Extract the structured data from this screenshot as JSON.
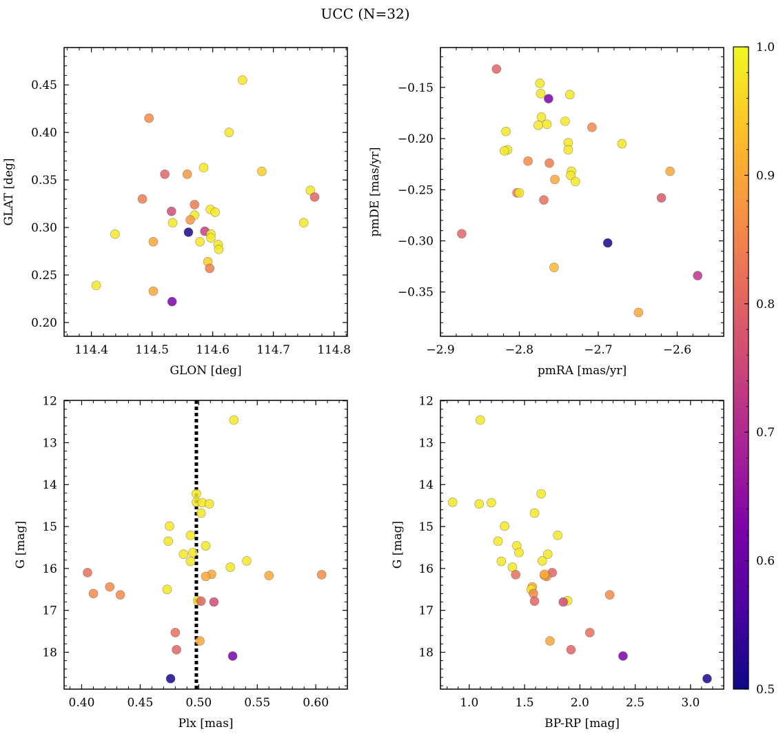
{
  "chart_data": [
    {
      "type": "scatter",
      "title": "UCC (N=32)",
      "xlabel": "GLON [deg]",
      "ylabel": "GLAT [deg]",
      "xlim": [
        114.355,
        114.822
      ],
      "ylim": [
        0.1855,
        0.4893
      ],
      "xticks": [
        114.4,
        114.5,
        114.6,
        114.7,
        114.8
      ],
      "xtick_labels": [
        "114.4",
        "114.5",
        "114.6",
        "114.7",
        "114.8"
      ],
      "yticks": [
        0.2,
        0.25,
        0.3,
        0.35,
        0.4,
        0.45
      ],
      "ytick_labels": [
        "0.20",
        "0.25",
        "0.30",
        "0.35",
        "0.40",
        "0.45"
      ],
      "x": [
        114.649,
        114.495,
        114.627,
        114.585,
        114.681,
        114.521,
        114.558,
        114.761,
        114.484,
        114.768,
        114.532,
        114.57,
        114.596,
        114.604,
        114.534,
        114.57,
        114.563,
        114.75,
        114.587,
        114.597,
        114.56,
        114.439,
        114.597,
        114.502,
        114.579,
        114.609,
        114.61,
        114.592,
        114.595,
        114.408,
        114.502,
        114.533
      ],
      "y": [
        0.455,
        0.415,
        0.4,
        0.363,
        0.359,
        0.356,
        0.356,
        0.339,
        0.33,
        0.332,
        0.317,
        0.324,
        0.319,
        0.316,
        0.305,
        0.313,
        0.308,
        0.305,
        0.296,
        0.293,
        0.295,
        0.293,
        0.289,
        0.285,
        0.285,
        0.282,
        0.277,
        0.264,
        0.257,
        0.239,
        0.233,
        0.222
      ],
      "c": [
        0.98,
        0.86,
        0.98,
        0.98,
        0.95,
        0.8,
        0.88,
        0.98,
        0.84,
        0.8,
        0.76,
        0.84,
        0.98,
        0.98,
        0.98,
        0.98,
        0.88,
        0.98,
        0.74,
        0.98,
        0.51,
        0.98,
        0.98,
        0.9,
        0.98,
        0.98,
        0.98,
        0.95,
        0.84,
        0.98,
        0.9,
        0.62
      ]
    },
    {
      "type": "scatter",
      "xlabel": "pmRA [mas/yr]",
      "ylabel": "pmDE [mas/yr]",
      "xlim": [
        -2.9,
        -2.541
      ],
      "ylim": [
        -0.3933,
        -0.111
      ],
      "xticks": [
        -2.9,
        -2.8,
        -2.7,
        -2.6
      ],
      "xtick_labels": [
        "−2.9",
        "−2.8",
        "−2.7",
        "−2.6"
      ],
      "yticks": [
        -0.35,
        -0.3,
        -0.25,
        -0.2,
        -0.15
      ],
      "ytick_labels": [
        "−0.35",
        "−0.30",
        "−0.25",
        "−0.20",
        "−0.15"
      ],
      "x": [
        -2.829,
        -2.774,
        -2.773,
        -2.763,
        -2.736,
        -2.772,
        -2.776,
        -2.765,
        -2.742,
        -2.708,
        -2.817,
        -2.738,
        -2.815,
        -2.819,
        -2.67,
        -2.738,
        -2.789,
        -2.762,
        -2.734,
        -2.735,
        -2.609,
        -2.803,
        -2.8,
        -2.755,
        -2.729,
        -2.769,
        -2.62,
        -2.873,
        -2.688,
        -2.756,
        -2.574,
        -2.649
      ],
      "y": [
        -0.132,
        -0.146,
        -0.156,
        -0.161,
        -0.157,
        -0.179,
        -0.187,
        -0.186,
        -0.183,
        -0.189,
        -0.193,
        -0.204,
        -0.211,
        -0.212,
        -0.205,
        -0.211,
        -0.222,
        -0.224,
        -0.232,
        -0.236,
        -0.232,
        -0.253,
        -0.253,
        -0.24,
        -0.242,
        -0.26,
        -0.258,
        -0.293,
        -0.302,
        -0.326,
        -0.334,
        -0.37
      ],
      "c": [
        0.8,
        0.98,
        0.98,
        0.62,
        0.98,
        0.98,
        0.98,
        0.98,
        0.98,
        0.86,
        0.98,
        0.98,
        0.98,
        0.98,
        0.98,
        0.98,
        0.86,
        0.84,
        0.98,
        0.98,
        0.9,
        0.84,
        0.98,
        0.9,
        0.98,
        0.82,
        0.78,
        0.8,
        0.51,
        0.92,
        0.72,
        0.9
      ]
    },
    {
      "type": "scatter",
      "xlabel": "Plx [mas]",
      "ylabel": "G [mag]",
      "xlim": [
        0.385,
        0.627
      ],
      "ylim": [
        18.88,
        11.99
      ],
      "y_inverted": true,
      "vline": 0.498,
      "xticks": [
        0.4,
        0.45,
        0.5,
        0.55,
        0.6
      ],
      "xtick_labels": [
        "0.40",
        "0.45",
        "0.50",
        "0.55",
        "0.60"
      ],
      "yticks": [
        12,
        13,
        14,
        15,
        16,
        17,
        18
      ],
      "ytick_labels": [
        "12",
        "13",
        "14",
        "15",
        "16",
        "17",
        "18"
      ],
      "x": [
        0.53,
        0.498,
        0.498,
        0.503,
        0.509,
        0.502,
        0.475,
        0.493,
        0.474,
        0.506,
        0.487,
        0.495,
        0.493,
        0.541,
        0.527,
        0.511,
        0.506,
        0.56,
        0.605,
        0.405,
        0.424,
        0.41,
        0.433,
        0.473,
        0.499,
        0.502,
        0.513,
        0.48,
        0.501,
        0.481,
        0.529,
        0.476
      ],
      "y": [
        12.46,
        14.22,
        14.42,
        14.43,
        14.46,
        14.68,
        14.99,
        15.21,
        15.35,
        15.46,
        15.66,
        15.62,
        15.83,
        15.82,
        15.97,
        16.14,
        16.19,
        16.17,
        16.15,
        16.1,
        16.44,
        16.6,
        16.63,
        16.5,
        16.77,
        16.78,
        16.8,
        17.53,
        17.73,
        17.94,
        18.09,
        18.63
      ],
      "c": [
        0.98,
        0.98,
        0.98,
        0.98,
        0.98,
        0.98,
        0.98,
        0.98,
        0.98,
        0.98,
        0.98,
        0.98,
        0.98,
        0.98,
        0.98,
        0.9,
        0.9,
        0.9,
        0.86,
        0.82,
        0.86,
        0.86,
        0.86,
        0.98,
        0.98,
        0.8,
        0.76,
        0.82,
        0.9,
        0.8,
        0.62,
        0.51
      ]
    },
    {
      "type": "scatter",
      "xlabel": "BP-RP [mag]",
      "ylabel": "G [mag]",
      "xlim": [
        0.74,
        3.3
      ],
      "ylim": [
        18.88,
        11.99
      ],
      "y_inverted": true,
      "xticks": [
        1.0,
        1.5,
        2.0,
        2.5,
        3.0
      ],
      "xtick_labels": [
        "1.0",
        "1.5",
        "2.0",
        "2.5",
        "3.0"
      ],
      "yticks": [
        12,
        13,
        14,
        15,
        16,
        17,
        18
      ],
      "ytick_labels": [
        "12",
        "13",
        "14",
        "15",
        "16",
        "17",
        "18"
      ],
      "x": [
        1.1,
        1.65,
        0.85,
        1.09,
        1.2,
        1.59,
        1.32,
        1.8,
        1.26,
        1.43,
        1.71,
        1.45,
        1.29,
        1.66,
        1.39,
        1.75,
        1.42,
        1.7,
        1.68,
        1.57,
        1.56,
        1.58,
        2.27,
        1.89,
        1.59,
        1.85,
        1.73,
        2.09,
        1.92,
        2.39,
        3.15,
        1.68
      ],
      "y": [
        12.46,
        14.22,
        14.42,
        14.46,
        14.43,
        14.68,
        14.99,
        15.21,
        15.35,
        15.46,
        15.66,
        15.62,
        15.83,
        15.82,
        15.97,
        16.1,
        16.15,
        16.19,
        16.17,
        16.44,
        16.5,
        16.6,
        16.63,
        16.77,
        16.78,
        16.8,
        17.73,
        17.53,
        17.94,
        18.09,
        18.63,
        16.14
      ],
      "c": [
        0.98,
        0.98,
        0.98,
        0.98,
        0.98,
        0.98,
        0.98,
        0.98,
        0.98,
        0.98,
        0.98,
        0.98,
        0.98,
        0.98,
        0.98,
        0.8,
        0.82,
        0.86,
        0.9,
        0.9,
        0.98,
        0.86,
        0.86,
        0.98,
        0.8,
        0.76,
        0.9,
        0.82,
        0.8,
        0.62,
        0.51,
        0.9
      ]
    }
  ],
  "colorbar": {
    "cmap": "plasma",
    "vmin": 0.5,
    "vmax": 1.0,
    "ticks": [
      0.5,
      0.6,
      0.7,
      0.8,
      0.9,
      1.0
    ],
    "tick_labels": [
      "0.5",
      "0.6",
      "0.7",
      "0.8",
      "0.9",
      "1.0"
    ]
  }
}
